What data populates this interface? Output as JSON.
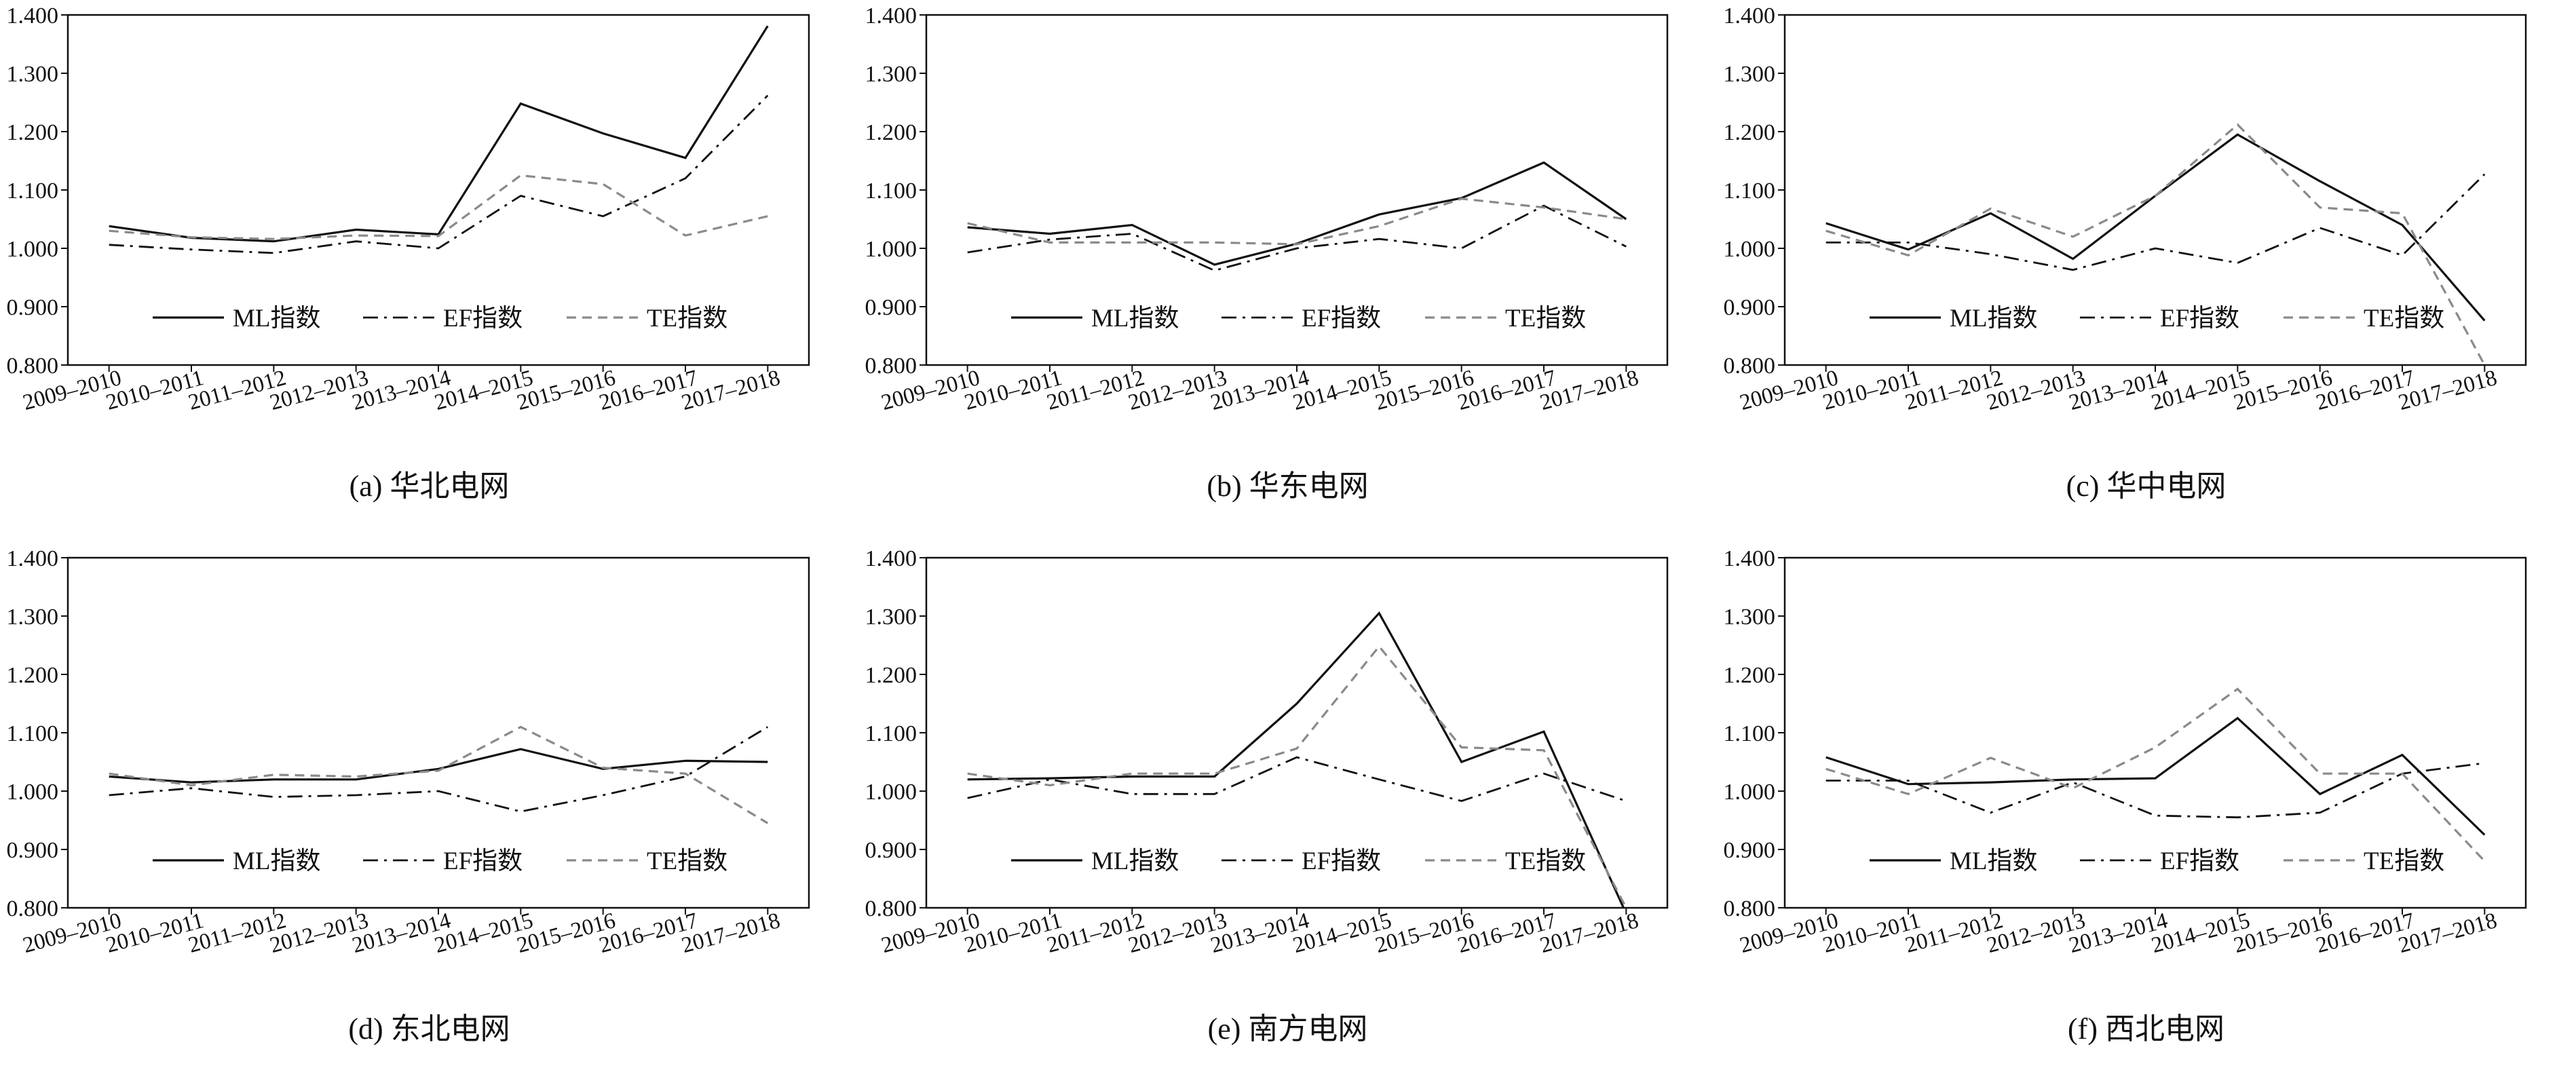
{
  "chart_data": [
    {
      "type": "line",
      "caption": "(a) 华北电网",
      "categories": [
        "2009–2010",
        "2010–2011",
        "2011–2012",
        "2012–2013",
        "2013–2014",
        "2014–2015",
        "2015–2016",
        "2016–2017",
        "2017–2018"
      ],
      "ylim": [
        0.8,
        1.4
      ],
      "yticks": [
        "0.800",
        "0.900",
        "1.000",
        "1.100",
        "1.200",
        "1.300",
        "1.400"
      ],
      "legend": "bottom-center",
      "series": [
        {
          "name": "ML指数",
          "values": [
            1.038,
            1.018,
            1.012,
            1.032,
            1.024,
            1.248,
            1.197,
            1.155,
            1.381
          ]
        },
        {
          "name": "EF指数",
          "values": [
            1.006,
            0.998,
            0.992,
            1.012,
            1.0,
            1.09,
            1.055,
            1.12,
            1.262
          ]
        },
        {
          "name": "TE指数",
          "values": [
            1.03,
            1.019,
            1.016,
            1.022,
            1.021,
            1.125,
            1.11,
            1.022,
            1.055
          ]
        }
      ]
    },
    {
      "type": "line",
      "caption": "(b) 华东电网",
      "categories": [
        "2009–2010",
        "2010–2011",
        "2011–2012",
        "2012–2013",
        "2013–2014",
        "2014–2015",
        "2015–2016",
        "2016–2017",
        "2017–2018"
      ],
      "ylim": [
        0.8,
        1.4
      ],
      "yticks": [
        "0.800",
        "0.900",
        "1.000",
        "1.100",
        "1.200",
        "1.300",
        "1.400"
      ],
      "legend": "bottom-center",
      "series": [
        {
          "name": "ML指数",
          "values": [
            1.036,
            1.025,
            1.04,
            0.972,
            1.008,
            1.058,
            1.086,
            1.147,
            1.05
          ]
        },
        {
          "name": "EF指数",
          "values": [
            0.993,
            1.015,
            1.025,
            0.962,
            1.0,
            1.016,
            1.0,
            1.073,
            1.003
          ]
        },
        {
          "name": "TE指数",
          "values": [
            1.043,
            1.01,
            1.01,
            1.01,
            1.007,
            1.038,
            1.085,
            1.07,
            1.05
          ]
        }
      ]
    },
    {
      "type": "line",
      "caption": "(c) 华中电网",
      "categories": [
        "2009–2010",
        "2010–2011",
        "2011–2012",
        "2012–2013",
        "2013–2014",
        "2014–2015",
        "2015–2016",
        "2016–2017",
        "2017–2018"
      ],
      "ylim": [
        0.8,
        1.4
      ],
      "yticks": [
        "0.800",
        "0.900",
        "1.000",
        "1.100",
        "1.200",
        "1.300",
        "1.400"
      ],
      "legend": "bottom-center",
      "series": [
        {
          "name": "ML指数",
          "values": [
            1.043,
            0.998,
            1.06,
            0.982,
            1.09,
            1.195,
            1.115,
            1.04,
            0.876
          ]
        },
        {
          "name": "EF指数",
          "values": [
            1.01,
            1.01,
            0.99,
            0.963,
            1.0,
            0.975,
            1.035,
            0.988,
            1.127
          ]
        },
        {
          "name": "TE指数",
          "values": [
            1.03,
            0.988,
            1.068,
            1.02,
            1.09,
            1.212,
            1.07,
            1.06,
            0.8
          ]
        }
      ]
    },
    {
      "type": "line",
      "caption": "(d) 东北电网",
      "categories": [
        "2009–2010",
        "2010–2011",
        "2011–2012",
        "2012–2013",
        "2013–2014",
        "2014–2015",
        "2015–2016",
        "2016–2017",
        "2017–2018"
      ],
      "ylim": [
        0.8,
        1.4
      ],
      "yticks": [
        "0.800",
        "0.900",
        "1.000",
        "1.100",
        "1.200",
        "1.300",
        "1.400"
      ],
      "legend": "bottom-center",
      "series": [
        {
          "name": "ML指数",
          "values": [
            1.025,
            1.015,
            1.02,
            1.02,
            1.038,
            1.072,
            1.038,
            1.052,
            1.05
          ]
        },
        {
          "name": "EF指数",
          "values": [
            0.993,
            1.005,
            0.99,
            0.993,
            1.0,
            0.965,
            0.993,
            1.025,
            1.11
          ]
        },
        {
          "name": "TE指数",
          "values": [
            1.03,
            1.01,
            1.028,
            1.025,
            1.035,
            1.11,
            1.04,
            1.03,
            0.945
          ]
        }
      ]
    },
    {
      "type": "line",
      "caption": "(e) 南方电网",
      "categories": [
        "2009–2010",
        "2010–2011",
        "2011–2012",
        "2012–2013",
        "2013–2014",
        "2014–2015",
        "2015–2016",
        "2016–2017",
        "2017–2018"
      ],
      "ylim": [
        0.8,
        1.4
      ],
      "yticks": [
        "0.800",
        "0.900",
        "1.000",
        "1.100",
        "1.200",
        "1.300",
        "1.400"
      ],
      "legend": "bottom-center",
      "series": [
        {
          "name": "ML指数",
          "values": [
            1.02,
            1.022,
            1.025,
            1.025,
            1.15,
            1.305,
            1.05,
            1.102,
            0.79
          ]
        },
        {
          "name": "EF指数",
          "values": [
            0.988,
            1.02,
            0.995,
            0.995,
            1.058,
            1.02,
            0.983,
            1.03,
            0.983
          ]
        },
        {
          "name": "TE指数",
          "values": [
            1.03,
            1.01,
            1.03,
            1.03,
            1.073,
            1.248,
            1.075,
            1.07,
            0.8
          ]
        }
      ]
    },
    {
      "type": "line",
      "caption": "(f) 西北电网",
      "categories": [
        "2009–2010",
        "2010–2011",
        "2011–2012",
        "2012–2013",
        "2013–2014",
        "2014–2015",
        "2015–2016",
        "2016–2017",
        "2017–2018"
      ],
      "ylim": [
        0.8,
        1.4
      ],
      "yticks": [
        "0.800",
        "0.900",
        "1.000",
        "1.100",
        "1.200",
        "1.300",
        "1.400"
      ],
      "legend": "bottom-center",
      "series": [
        {
          "name": "ML指数",
          "values": [
            1.058,
            1.012,
            1.015,
            1.02,
            1.022,
            1.125,
            0.995,
            1.062,
            0.925
          ]
        },
        {
          "name": "EF指数",
          "values": [
            1.018,
            1.018,
            0.963,
            1.015,
            0.958,
            0.955,
            0.963,
            1.03,
            1.048
          ]
        },
        {
          "name": "TE指数",
          "values": [
            1.038,
            0.995,
            1.057,
            1.005,
            1.075,
            1.175,
            1.03,
            1.03,
            0.88
          ]
        }
      ]
    }
  ]
}
